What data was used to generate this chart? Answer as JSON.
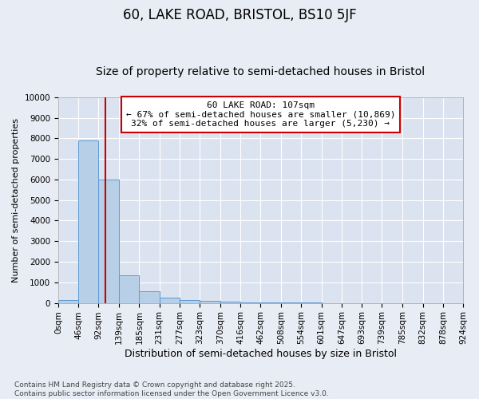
{
  "title": "60, LAKE ROAD, BRISTOL, BS10 5JF",
  "subtitle": "Size of property relative to semi-detached houses in Bristol",
  "xlabel": "Distribution of semi-detached houses by size in Bristol",
  "ylabel": "Number of semi-detached properties",
  "bin_edges": [
    0,
    46,
    92,
    139,
    185,
    231,
    277,
    323,
    370,
    416,
    462,
    508,
    554,
    601,
    647,
    693,
    739,
    785,
    832,
    878,
    924
  ],
  "bar_heights": [
    150,
    7900,
    6000,
    1350,
    550,
    250,
    150,
    100,
    50,
    25,
    12,
    8,
    5,
    3,
    2,
    1,
    1,
    0,
    0,
    0
  ],
  "bar_color": "#b8cfe8",
  "bar_edgecolor": "#5b9bd5",
  "property_size": 107,
  "vline_color": "#cc0000",
  "annotation_text": "60 LAKE ROAD: 107sqm\n← 67% of semi-detached houses are smaller (10,869)\n32% of semi-detached houses are larger (5,230) →",
  "annotation_box_facecolor": "#ffffff",
  "annotation_box_edgecolor": "#cc0000",
  "ylim": [
    0,
    10000
  ],
  "yticks": [
    0,
    1000,
    2000,
    3000,
    4000,
    5000,
    6000,
    7000,
    8000,
    9000,
    10000
  ],
  "background_color": "#e8ecf4",
  "plot_bg_color": "#dce3f0",
  "grid_color": "#ffffff",
  "footer_text": "Contains HM Land Registry data © Crown copyright and database right 2025.\nContains public sector information licensed under the Open Government Licence v3.0.",
  "title_fontsize": 12,
  "subtitle_fontsize": 10,
  "xlabel_fontsize": 9,
  "ylabel_fontsize": 8,
  "tick_fontsize": 7.5,
  "annotation_fontsize": 8,
  "footer_fontsize": 6.5
}
